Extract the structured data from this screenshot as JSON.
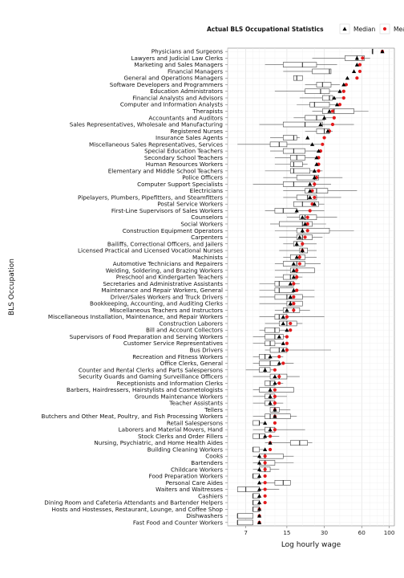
{
  "chart_data": {
    "type": "boxplot",
    "title": "",
    "xlabel": "Log hourly wage",
    "ylabel": "BLS Occupation",
    "x_scale": "log",
    "xlim": [
      5,
      110
    ],
    "x_ticks": [
      7,
      15,
      30,
      60,
      100
    ],
    "grid": true,
    "legend": {
      "title": "Actual BLS Occupational Statistics",
      "placement": "top-right",
      "entries": [
        {
          "name": "Median",
          "marker": "triangle",
          "color": "#000000"
        },
        {
          "name": "Mean",
          "marker": "circle",
          "color": "#e41a1c"
        }
      ]
    },
    "categories": [
      {
        "name": "Physicians and Surgeons",
        "q1": 73,
        "median": 73,
        "q3": 73,
        "wlo": 73,
        "whi": 73,
        "bls_median": 88,
        "bls_mean": 88
      },
      {
        "name": "Lawyers and Judicial Law Clerks",
        "q1": 44,
        "median": 55,
        "q3": 63,
        "wlo": 24,
        "whi": 70,
        "bls_median": 55,
        "bls_mean": 61
      },
      {
        "name": "Marketing and Sales Managers",
        "q1": 14,
        "median": 20,
        "q3": 26,
        "wlo": 10,
        "whi": 38,
        "bls_median": 55,
        "bls_mean": 58
      },
      {
        "name": "Financial Managers",
        "q1": 24,
        "median": 33,
        "q3": 34,
        "wlo": 14,
        "whi": 34,
        "bls_median": 52,
        "bls_mean": 58
      },
      {
        "name": "General and Operations Managers",
        "q1": 17,
        "median": 18,
        "q3": 20,
        "wlo": 17,
        "whi": 20,
        "bls_median": 46,
        "bls_mean": 55
      },
      {
        "name": "Software Developers and Programmers",
        "q1": 26,
        "median": 29,
        "q3": 34,
        "wlo": 21,
        "whi": 40,
        "bls_median": 43,
        "bls_mean": 45
      },
      {
        "name": "Education Administrators",
        "q1": 21,
        "median": 28,
        "q3": 33,
        "wlo": 12,
        "whi": 44,
        "bls_median": 40,
        "bls_mean": 43
      },
      {
        "name": "Financial Analysts and Advisors",
        "q1": 29,
        "median": 33,
        "q3": 35,
        "wlo": 19,
        "whi": 44,
        "bls_median": 36,
        "bls_mean": 43
      },
      {
        "name": "Computer and Information Analysts",
        "q1": 23,
        "median": 25,
        "q3": 33,
        "wlo": 18,
        "whi": 40,
        "bls_median": 38,
        "bls_mean": 40
      },
      {
        "name": "Therapists",
        "q1": 29,
        "median": 36,
        "q3": 52,
        "wlo": 24,
        "whi": 68,
        "bls_median": 33,
        "bls_mean": 35
      },
      {
        "name": "Accountants and Auditors",
        "q1": 21,
        "median": 26,
        "q3": 30,
        "wlo": 17,
        "whi": 35,
        "bls_median": 30,
        "bls_mean": 36
      },
      {
        "name": "Sales Representatives, Wholesale and Manufacturing",
        "q1": 14,
        "median": 21,
        "q3": 29,
        "wlo": 9,
        "whi": 52,
        "bls_median": 28,
        "bls_mean": 35
      },
      {
        "name": "Registered Nurses",
        "q1": 26,
        "median": 30,
        "q3": 33,
        "wlo": 21,
        "whi": 35,
        "bls_median": 32,
        "bls_mean": 33
      },
      {
        "name": "Insurance Sales Agents",
        "q1": 14,
        "median": 17,
        "q3": 18,
        "wlo": 11,
        "whi": 19,
        "bls_median": 22,
        "bls_mean": 30
      },
      {
        "name": "Miscellaneous Sales Representatives, Services",
        "q1": 11,
        "median": 13,
        "q3": 15,
        "wlo": 6,
        "whi": 28,
        "bls_median": 24,
        "bls_mean": 29
      },
      {
        "name": "Special Education Teachers",
        "q1": 14,
        "median": 17,
        "q3": 21,
        "wlo": 11,
        "whi": 27,
        "bls_median": 27,
        "bls_mean": 28
      },
      {
        "name": "Secondary School Teachers",
        "q1": 16,
        "median": 18,
        "q3": 21,
        "wlo": 12,
        "whi": 26,
        "bls_median": 26,
        "bls_mean": 27
      },
      {
        "name": "Human Resources Workers",
        "q1": 16,
        "median": 17,
        "q3": 20,
        "wlo": 12,
        "whi": 22,
        "bls_median": 26,
        "bls_mean": 27
      },
      {
        "name": "Elementary and Middle School Teachers",
        "q1": 16,
        "median": 17,
        "q3": 23,
        "wlo": 10,
        "whi": 29,
        "bls_median": 25,
        "bls_mean": 27
      },
      {
        "name": "Police Officers",
        "q1": 18,
        "median": 25,
        "q3": 27,
        "wlo": 14,
        "whi": 42,
        "bls_median": 25,
        "bls_mean": 26
      },
      {
        "name": "Computer Support Specialists",
        "q1": 14,
        "median": 17,
        "q3": 25,
        "wlo": 8,
        "whi": 34,
        "bls_median": 23,
        "bls_mean": 25
      },
      {
        "name": "Electricians",
        "q1": 21,
        "median": 26,
        "q3": 32,
        "wlo": 14,
        "whi": 55,
        "bls_median": 23,
        "bls_mean": 24
      },
      {
        "name": "Pipelayers, Plumbers, Pipefitters, and Steamfitters",
        "q1": 18,
        "median": 22,
        "q3": 26,
        "wlo": 14,
        "whi": 41,
        "bls_median": 23,
        "bls_mean": 25
      },
      {
        "name": "Postal Service Workers",
        "q1": 17,
        "median": 20,
        "q3": 27,
        "wlo": 17,
        "whi": 30,
        "bls_median": 25,
        "bls_mean": 24
      },
      {
        "name": "First-Line Supervisors of Sales Workers",
        "q1": 12,
        "median": 14,
        "q3": 18,
        "wlo": 10,
        "whi": 30,
        "bls_median": 18,
        "bls_mean": 23
      },
      {
        "name": "Counselors",
        "q1": 19,
        "median": 21,
        "q3": 26,
        "wlo": 15,
        "whi": 38,
        "bls_median": 20,
        "bls_mean": 22
      },
      {
        "name": "Social Workers",
        "q1": 13,
        "median": 20,
        "q3": 24,
        "wlo": 11,
        "whi": 31,
        "bls_median": 21,
        "bls_mean": 22
      },
      {
        "name": "Construction Equipment Operators",
        "q1": 18,
        "median": 20,
        "q3": 33,
        "wlo": 12,
        "whi": 52,
        "bls_median": 20,
        "bls_mean": 22
      },
      {
        "name": "Carpenters",
        "q1": 18,
        "median": 20,
        "q3": 24,
        "wlo": 13,
        "whi": 29,
        "bls_median": 19,
        "bls_mean": 21
      },
      {
        "name": "Bailiffs, Correctional Officers, and Jailers",
        "q1": 17,
        "median": 18,
        "q3": 20,
        "wlo": 14,
        "whi": 26,
        "bls_median": 18,
        "bls_mean": 20
      },
      {
        "name": "Licensed Practical and Licensed Vocational Nurses",
        "q1": 19,
        "median": 20,
        "q3": 22,
        "wlo": 13,
        "whi": 26,
        "bls_median": 20,
        "bls_mean": 20
      },
      {
        "name": "Machinists",
        "q1": 16,
        "median": 19,
        "q3": 21,
        "wlo": 14,
        "whi": 26,
        "bls_median": 18,
        "bls_mean": 19
      },
      {
        "name": "Automotive Technicians and Repairers",
        "q1": 14,
        "median": 18,
        "q3": 21,
        "wlo": 12,
        "whi": 28,
        "bls_median": 17,
        "bls_mean": 19
      },
      {
        "name": "Welding, Soldering, and Brazing Workers",
        "q1": 16,
        "median": 18,
        "q3": 25,
        "wlo": 12,
        "whi": 25,
        "bls_median": 17,
        "bls_mean": 18
      },
      {
        "name": "Preschool and Kindergarten Teachers",
        "q1": 14,
        "median": 16,
        "q3": 18,
        "wlo": 12,
        "whi": 20,
        "bls_median": 17,
        "bls_mean": 18
      },
      {
        "name": "Secretaries and Administrative Assistants",
        "q1": 12,
        "median": 13,
        "q3": 17,
        "wlo": 9,
        "whi": 19,
        "bls_median": 16,
        "bls_mean": 17
      },
      {
        "name": "Maintenance and Repair Workers, General",
        "q1": 12,
        "median": 13,
        "q3": 17,
        "wlo": 9,
        "whi": 25,
        "bls_median": 17,
        "bls_mean": 18
      },
      {
        "name": "Driver/Sales Workers and Truck Drivers",
        "q1": 12,
        "median": 15,
        "q3": 20,
        "wlo": 9,
        "whi": 25,
        "bls_median": 16,
        "bls_mean": 17
      },
      {
        "name": "Bookkeeping, Accounting, and Auditing Clerks",
        "q1": 15,
        "median": 16,
        "q3": 20,
        "wlo": 9,
        "whi": 20,
        "bls_median": 16,
        "bls_mean": 17
      },
      {
        "name": "Miscellaneous Teachers and Instructors",
        "q1": 14,
        "median": 17,
        "q3": 19,
        "wlo": 12,
        "whi": 23,
        "bls_median": 15,
        "bls_mean": 17
      },
      {
        "name": "Miscellaneous Installation, Maintenance, and Repair Workers",
        "q1": 12,
        "median": 13,
        "q3": 15,
        "wlo": 9,
        "whi": 30,
        "bls_median": 14,
        "bls_mean": 15
      },
      {
        "name": "Construction Laborers",
        "q1": 13,
        "median": 15,
        "q3": 18,
        "wlo": 10,
        "whi": 20,
        "bls_median": 14,
        "bls_mean": 16
      },
      {
        "name": "Bill and Account Collectors",
        "q1": 10,
        "median": 12,
        "q3": 13,
        "wlo": 9,
        "whi": 15,
        "bls_median": 15,
        "bls_mean": 16
      },
      {
        "name": "Supervisors of Food Preparation and Serving Workers",
        "q1": 10,
        "median": 12,
        "q3": 14,
        "wlo": 8,
        "whi": 15,
        "bls_median": 13,
        "bls_mean": 15
      },
      {
        "name": "Customer Service Representatives",
        "q1": 10,
        "median": 11,
        "q3": 12,
        "wlo": 8,
        "whi": 14,
        "bls_median": 14,
        "bls_mean": 15
      },
      {
        "name": "Bus Drivers",
        "q1": 11,
        "median": 13,
        "q3": 15,
        "wlo": 10,
        "whi": 34,
        "bls_median": 14,
        "bls_mean": 15
      },
      {
        "name": "Recreation and Fitness Workers",
        "q1": 9,
        "median": 10,
        "q3": 11,
        "wlo": 8,
        "whi": 14,
        "bls_median": 11,
        "bls_mean": 13
      },
      {
        "name": "Office Clerks, General",
        "q1": 9,
        "median": 11,
        "q3": 13,
        "wlo": 8,
        "whi": 17,
        "bls_median": 13,
        "bls_mean": 14
      },
      {
        "name": "Counter and Rental Clerks and Parts Salespersons",
        "q1": 9,
        "median": 10,
        "q3": 11,
        "wlo": 7,
        "whi": 12,
        "bls_median": 10,
        "bls_mean": 12
      },
      {
        "name": "Security Guards and Gaming Surveillance Officers",
        "q1": 11,
        "median": 13,
        "q3": 15,
        "wlo": 8,
        "whi": 19,
        "bls_median": 12,
        "bls_mean": 13
      },
      {
        "name": "Receptionists and Information Clerks",
        "q1": 10,
        "median": 11,
        "q3": 12,
        "wlo": 10,
        "whi": 14,
        "bls_median": 12,
        "bls_mean": 13
      },
      {
        "name": "Barbers, Hairdressers, Hairstylists and Cosmetologists",
        "q1": 9,
        "median": 11,
        "q3": 17,
        "wlo": 8,
        "whi": 17,
        "bls_median": 11,
        "bls_mean": 12
      },
      {
        "name": "Grounds Maintenance Workers",
        "q1": 10,
        "median": 11,
        "q3": 12,
        "wlo": 8,
        "whi": 15,
        "bls_median": 11,
        "bls_mean": 12
      },
      {
        "name": "Teacher Assistants",
        "q1": 10,
        "median": 11,
        "q3": 12,
        "wlo": 8,
        "whi": 14,
        "bls_median": 11,
        "bls_mean": 12
      },
      {
        "name": "Tellers",
        "q1": 11,
        "median": 12,
        "q3": 13,
        "wlo": 11,
        "whi": 16,
        "bls_median": 12,
        "bls_mean": 12
      },
      {
        "name": "Butchers and Other Meat, Poultry, and Fish Processing Workers",
        "q1": 10,
        "median": 11,
        "q3": 16,
        "wlo": 8,
        "whi": 18,
        "bls_median": 12,
        "bls_mean": 12
      },
      {
        "name": "Retail Salespersons",
        "q1": 8,
        "median": 9,
        "q3": 9,
        "wlo": 8,
        "whi": 10,
        "bls_median": 10,
        "bls_mean": 12
      },
      {
        "name": "Laborers and Material Movers, Hand",
        "q1": 10,
        "median": 11,
        "q3": 12,
        "wlo": 8,
        "whi": 21,
        "bls_median": 11,
        "bls_mean": 12
      },
      {
        "name": "Stock Clerks and Order Fillers",
        "q1": 8,
        "median": 9,
        "q3": 10,
        "wlo": 8,
        "whi": 13,
        "bls_median": 10,
        "bls_mean": 11
      },
      {
        "name": "Nursing, Psychiatric, and Home Health Aides",
        "q1": 16,
        "median": 19,
        "q3": 22,
        "wlo": 10,
        "whi": 24,
        "bls_median": 11,
        "bls_mean": 11
      },
      {
        "name": "Building Cleaning Workers",
        "q1": 8,
        "median": 8,
        "q3": 9,
        "wlo": 8,
        "whi": 10,
        "bls_median": 10,
        "bls_mean": 11
      },
      {
        "name": "Cooks",
        "q1": 9,
        "median": 10,
        "q3": 14,
        "wlo": 8,
        "whi": 17,
        "bls_median": 9,
        "bls_mean": 10
      },
      {
        "name": "Bartenders",
        "q1": 9,
        "median": 10,
        "q3": 12,
        "wlo": 8,
        "whi": 17,
        "bls_median": 9,
        "bls_mean": 10
      },
      {
        "name": "Childcare Workers",
        "q1": 9,
        "median": 10,
        "q3": 11,
        "wlo": 8,
        "whi": 13,
        "bls_median": 9,
        "bls_mean": 10
      },
      {
        "name": "Food Preparation Workers",
        "q1": 8,
        "median": 8,
        "q3": 9,
        "wlo": 8,
        "whi": 9,
        "bls_median": 9,
        "bls_mean": 10
      },
      {
        "name": "Personal Care Aides",
        "q1": 12,
        "median": 14,
        "q3": 16,
        "wlo": 9,
        "whi": 16,
        "bls_median": 9,
        "bls_mean": 10
      },
      {
        "name": "Waiters and Waitresses",
        "q1": 6,
        "median": 7,
        "q3": 9,
        "wlo": 6,
        "whi": 13,
        "bls_median": 9,
        "bls_mean": 10
      },
      {
        "name": "Cashiers",
        "q1": 8,
        "median": 8,
        "q3": 9,
        "wlo": 8,
        "whi": 9,
        "bls_median": 9,
        "bls_mean": 10
      },
      {
        "name": "Dining Room and Cafeteria Attendants and Bartender Helpers",
        "q1": 8,
        "median": 8,
        "q3": 9,
        "wlo": 8,
        "whi": 9,
        "bls_median": 9,
        "bls_mean": 10
      },
      {
        "name": "Hosts and Hostesses, Restaurant, Lounge, and Coffee Shop",
        "q1": 8,
        "median": 8,
        "q3": 9,
        "wlo": 8,
        "whi": 9,
        "bls_median": 9,
        "bls_mean": 9
      },
      {
        "name": "Dishwashers",
        "q1": 6,
        "median": 6,
        "q3": 8,
        "wlo": 6,
        "whi": 8,
        "bls_median": 9,
        "bls_mean": 9
      },
      {
        "name": "Fast Food and Counter Workers",
        "q1": 6,
        "median": 6,
        "q3": 8,
        "wlo": 6,
        "whi": 8,
        "bls_median": 9,
        "bls_mean": 9
      }
    ]
  }
}
